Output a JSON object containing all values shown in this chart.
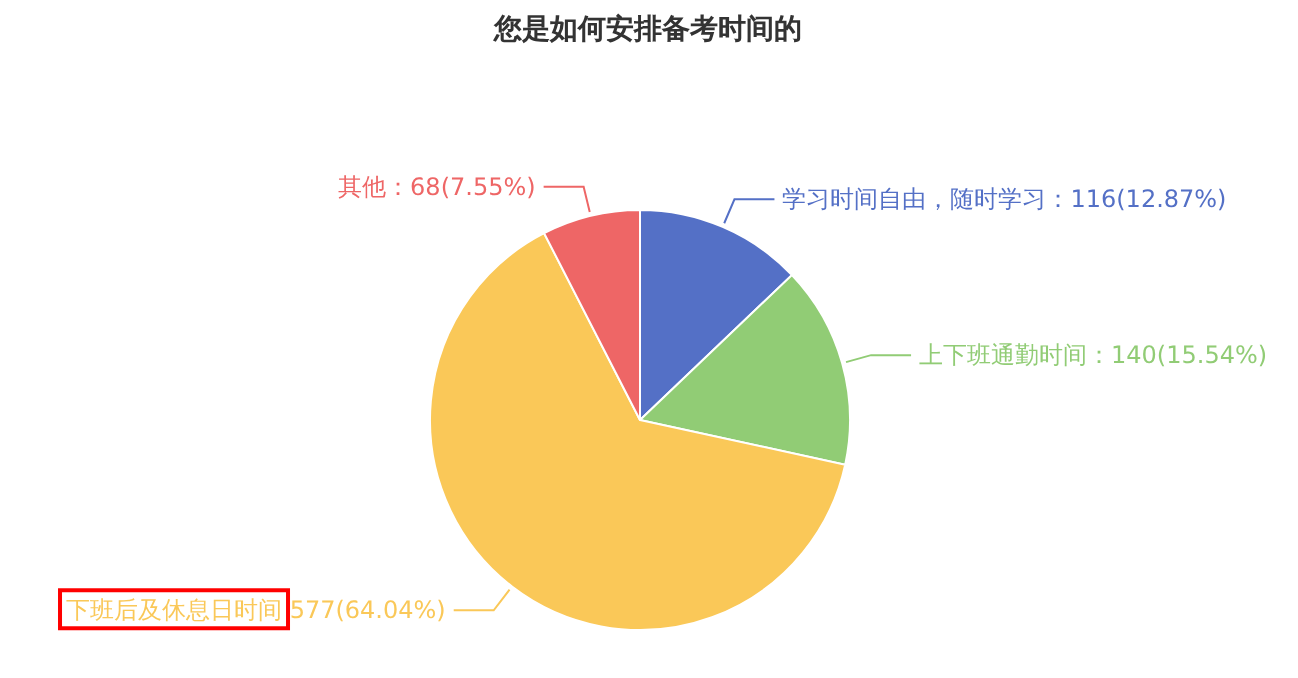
{
  "chart_data": {
    "type": "pie",
    "title": "您是如何安排备考时间的",
    "categories": [
      "学习时间自由，随时学习",
      "上下班通勤时间",
      "下班后及休息日时间",
      "其他"
    ],
    "values": [
      116,
      140,
      577,
      68
    ],
    "value_labels": [
      "：116(12.87%)",
      "：140(15.54%)",
      "577(64.04%)",
      "：68(7.55%)"
    ],
    "colors": [
      "#5470c6",
      "#91cc75",
      "#fac858",
      "#ee6666"
    ],
    "legend": false
  }
}
